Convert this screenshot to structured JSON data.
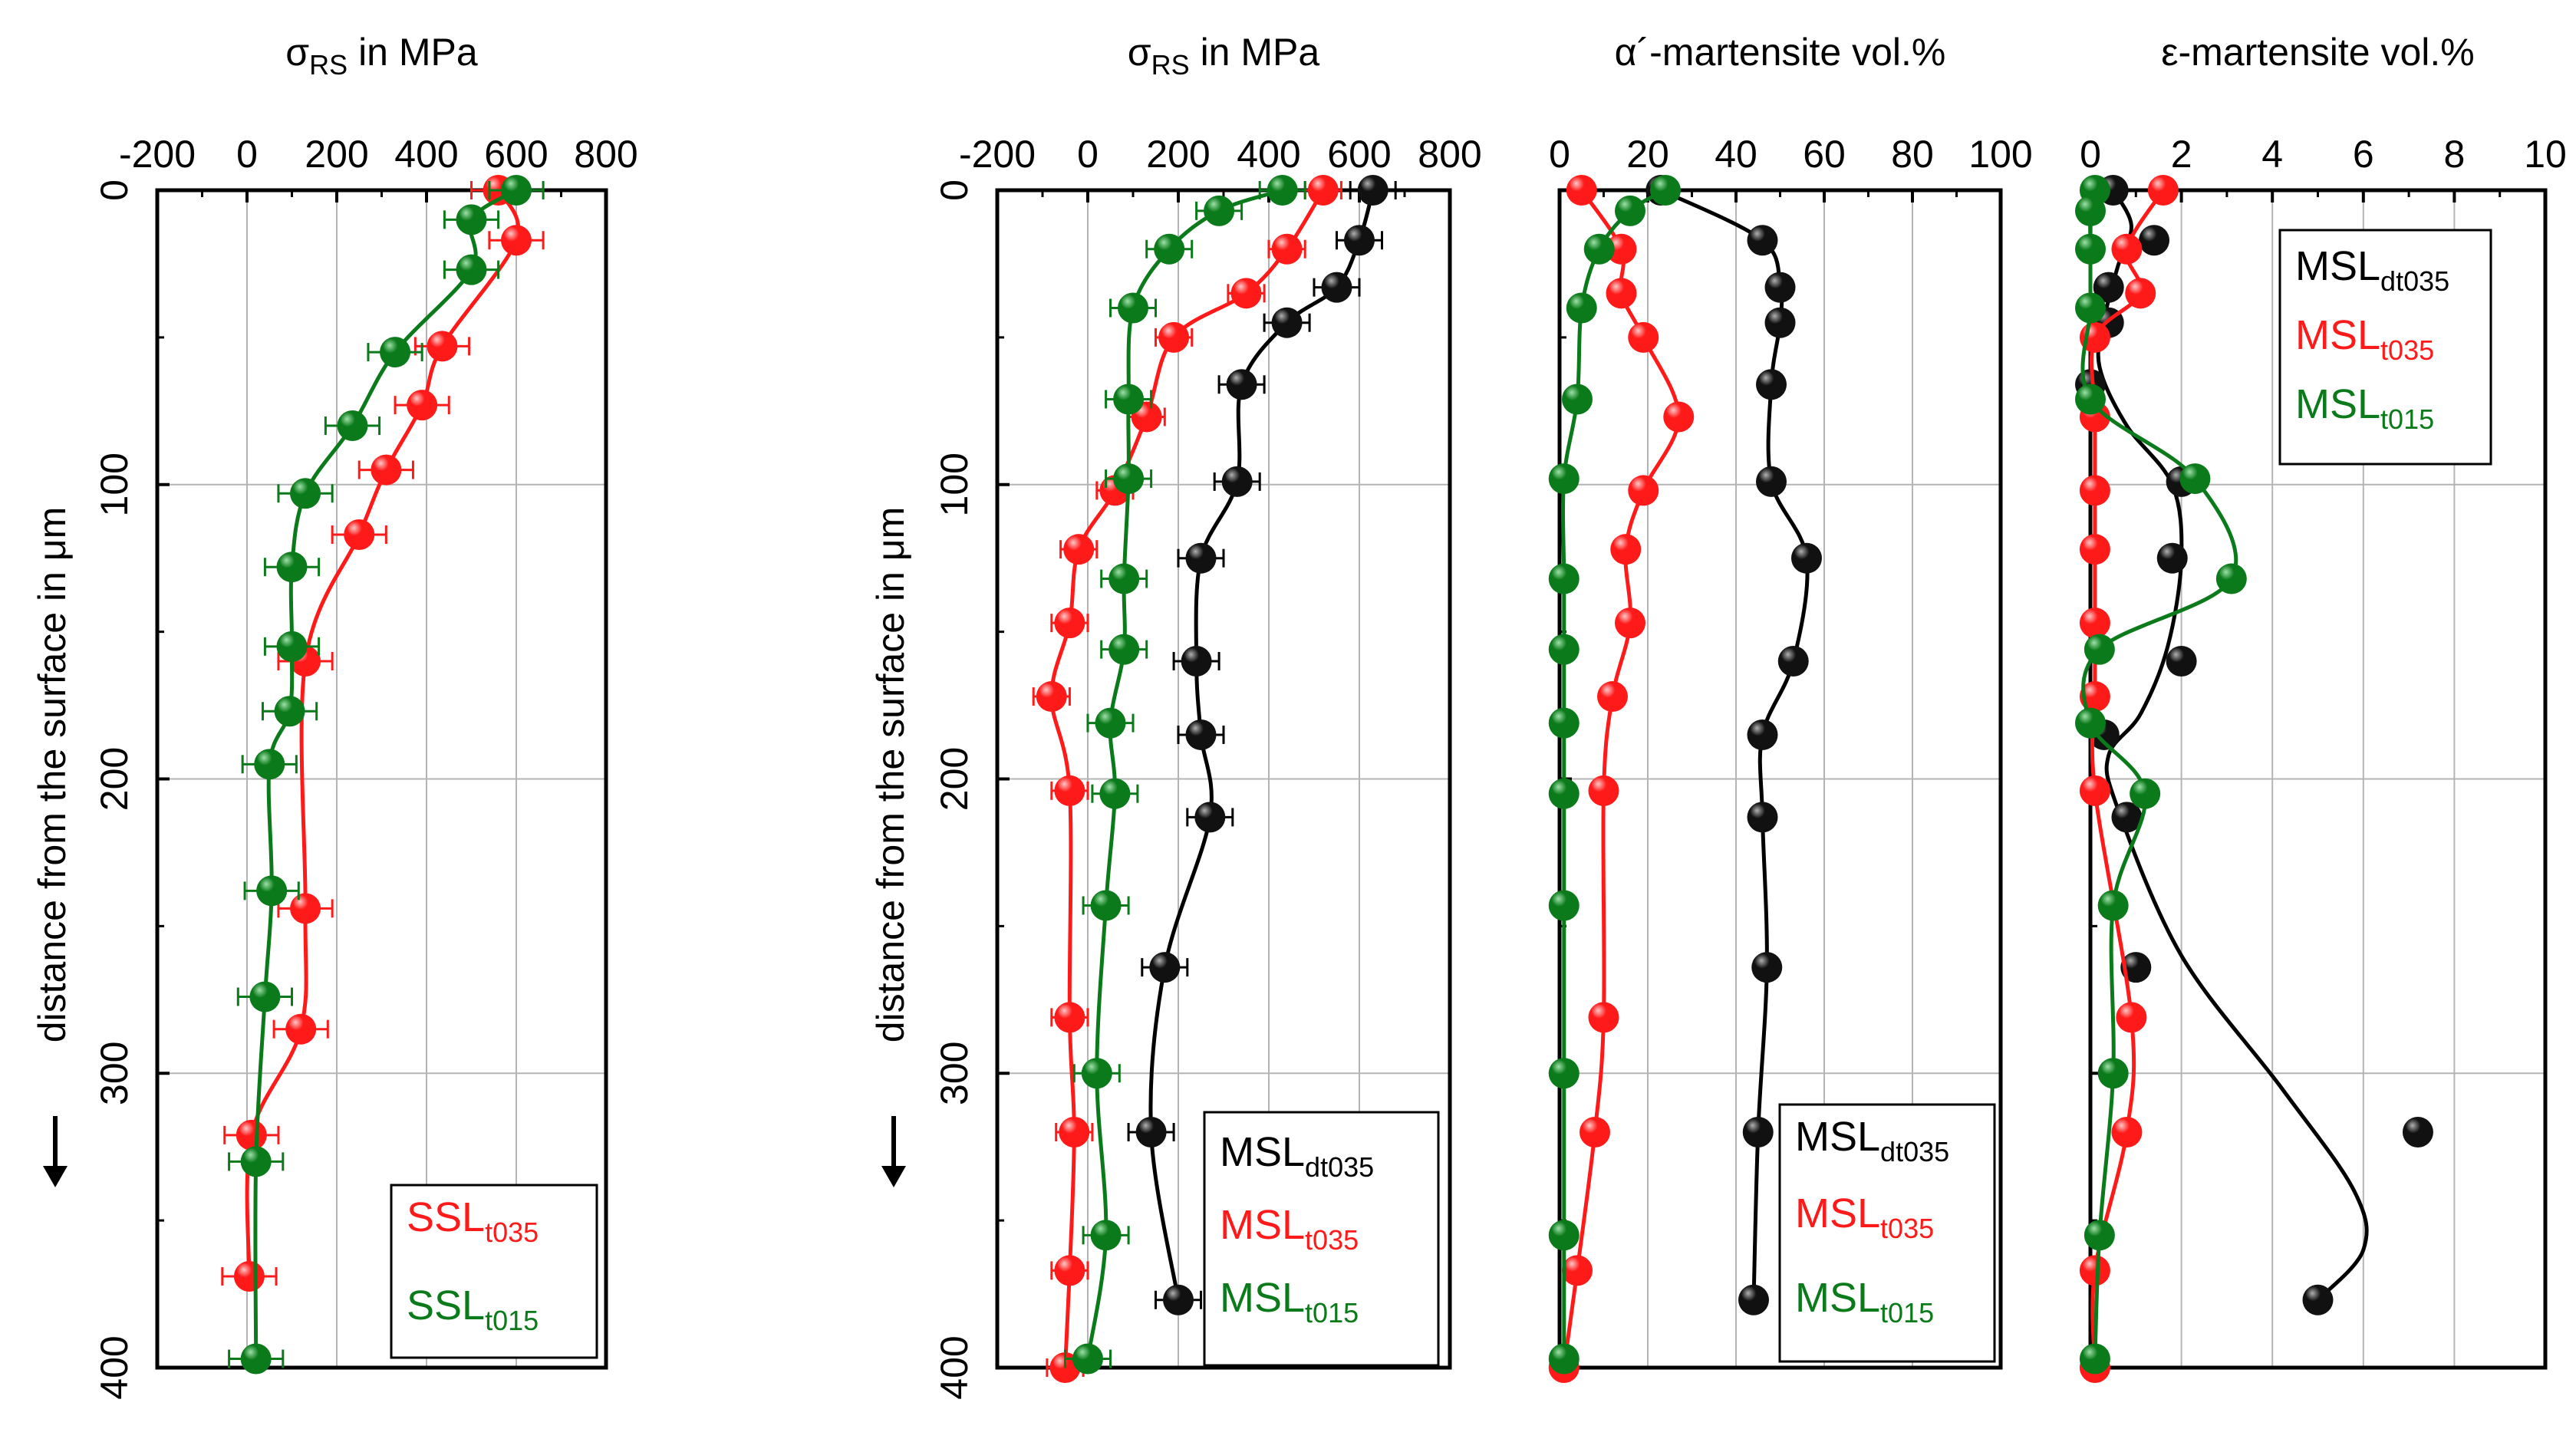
{
  "colors": {
    "red": "#ff1a1a",
    "green": "#0a7a1a",
    "black": "#000000",
    "grid": "#b4b4b4"
  },
  "y_axis": {
    "label": "distance from the surface in μm",
    "ticks": [
      0,
      100,
      200,
      300,
      400
    ],
    "range": [
      0,
      400
    ]
  },
  "chart_data": [
    {
      "type": "line",
      "title": {
        "main": "σ",
        "sub": "RS",
        "rest": " in MPa"
      },
      "xlim": [
        -200,
        800
      ],
      "xticks": [
        -200,
        0,
        200,
        400,
        600,
        800
      ],
      "ylabel": "distance from the surface in μm",
      "legend": [
        {
          "name": "SSL",
          "sub": "t035",
          "color": "#ff1a1a"
        },
        {
          "name": "SSL",
          "sub": "t015",
          "color": "#0a7a1a"
        }
      ],
      "series": [
        {
          "name": "SSL t035",
          "color": "#ff1a1a",
          "x": [
            560,
            600,
            435,
            390,
            310,
            250,
            130,
            130,
            120,
            10,
            5
          ],
          "y": [
            0,
            17,
            53,
            73,
            95,
            117,
            160,
            244,
            285,
            321,
            369
          ],
          "xerr": 60
        },
        {
          "name": "SSL t015",
          "color": "#0a7a1a",
          "x": [
            600,
            500,
            500,
            330,
            235,
            130,
            100,
            100,
            95,
            50,
            55,
            40,
            20,
            20
          ],
          "y": [
            0,
            10,
            27,
            55,
            80,
            103,
            128,
            155,
            177,
            195,
            238,
            274,
            330,
            397
          ],
          "xerr": 60
        }
      ]
    },
    {
      "type": "line",
      "title": {
        "main": "σ",
        "sub": "RS",
        "rest": " in MPa"
      },
      "xlim": [
        -200,
        800
      ],
      "xticks": [
        -200,
        0,
        200,
        400,
        600,
        800
      ],
      "legend": [
        {
          "name": "MSL",
          "sub": "dt035",
          "color": "#000000"
        },
        {
          "name": "MSL",
          "sub": "t035",
          "color": "#ff1a1a"
        },
        {
          "name": "MSL",
          "sub": "t015",
          "color": "#0a7a1a"
        }
      ],
      "series": [
        {
          "name": "MSL dt035",
          "color": "#000000",
          "x": [
            630,
            600,
            550,
            440,
            340,
            330,
            250,
            240,
            250,
            270,
            170,
            140,
            200
          ],
          "y": [
            0,
            17,
            33,
            45,
            66,
            99,
            125,
            160,
            185,
            213,
            264,
            320,
            377
          ],
          "xerr": 50
        },
        {
          "name": "MSL t035",
          "color": "#ff1a1a",
          "x": [
            520,
            440,
            350,
            190,
            130,
            60,
            -20,
            -40,
            -80,
            -40,
            -40,
            -30,
            -40,
            -50
          ],
          "y": [
            0,
            20,
            35,
            50,
            77,
            102,
            122,
            147,
            172,
            204,
            281,
            320,
            367,
            400
          ],
          "xerr": 40
        },
        {
          "name": "MSL t015",
          "color": "#0a7a1a",
          "x": [
            430,
            290,
            180,
            100,
            90,
            90,
            80,
            80,
            50,
            60,
            40,
            20,
            40,
            0
          ],
          "y": [
            0,
            7,
            20,
            40,
            71,
            98,
            132,
            156,
            181,
            205,
            243,
            300,
            355,
            397
          ],
          "xerr": 50
        }
      ]
    },
    {
      "type": "line",
      "title": {
        "main": "α´-martensite vol.%",
        "sub": "",
        "rest": ""
      },
      "xlim": [
        0,
        100
      ],
      "xticks": [
        0,
        20,
        40,
        60,
        80,
        100
      ],
      "legend": [
        {
          "name": "MSL",
          "sub": "dt035",
          "color": "#000000"
        },
        {
          "name": "MSL",
          "sub": "t035",
          "color": "#ff1a1a"
        },
        {
          "name": "MSL",
          "sub": "t015",
          "color": "#0a7a1a"
        }
      ],
      "series": [
        {
          "name": "MSL dt035",
          "color": "#000000",
          "x": [
            23,
            46,
            50,
            50,
            48,
            48,
            56,
            53,
            46,
            46,
            47,
            45,
            44
          ],
          "y": [
            0,
            17,
            33,
            45,
            66,
            99,
            125,
            160,
            185,
            213,
            264,
            320,
            377
          ]
        },
        {
          "name": "MSL t035",
          "color": "#ff1a1a",
          "x": [
            5,
            14,
            14,
            19,
            27,
            19,
            15,
            16,
            12,
            10,
            10,
            8,
            4,
            1
          ],
          "y": [
            0,
            20,
            35,
            50,
            77,
            102,
            122,
            147,
            172,
            204,
            281,
            320,
            367,
            400
          ]
        },
        {
          "name": "MSL t015",
          "color": "#0a7a1a",
          "x": [
            24,
            16,
            9,
            5,
            4,
            1,
            1,
            1,
            1,
            1,
            1,
            1,
            1,
            1
          ],
          "y": [
            0,
            7,
            20,
            40,
            71,
            98,
            132,
            156,
            181,
            205,
            243,
            300,
            355,
            397
          ]
        }
      ]
    },
    {
      "type": "line",
      "title": {
        "main": "ε-martensite vol.%",
        "sub": "",
        "rest": ""
      },
      "xlim": [
        0,
        10
      ],
      "xticks": [
        0,
        2,
        4,
        6,
        8,
        10
      ],
      "legend": [
        {
          "name": "MSL",
          "sub": "dt035",
          "color": "#000000"
        },
        {
          "name": "MSL",
          "sub": "t035",
          "color": "#ff1a1a"
        },
        {
          "name": "MSL",
          "sub": "t015",
          "color": "#0a7a1a"
        }
      ],
      "series": [
        {
          "name": "MSL dt035",
          "color": "#000000",
          "x": [
            0.5,
            1.4,
            0.4,
            0.4,
            0,
            2,
            1.8,
            2,
            0.3,
            0.8,
            1,
            7.2,
            5
          ],
          "y": [
            0,
            17,
            33,
            45,
            66,
            99,
            125,
            160,
            185,
            213,
            264,
            320,
            377
          ],
          "curve_x": [
            0.5,
            0.9,
            0.6,
            0.3,
            0.2,
            0.8,
            1.8,
            2.0,
            1.7,
            1.1,
            0.4,
            0.6,
            2.0,
            4.2,
            5.8,
            6.0,
            5.0
          ],
          "curve_y": [
            0,
            12,
            26,
            44,
            60,
            80,
            100,
            125,
            155,
            178,
            192,
            210,
            260,
            305,
            340,
            360,
            377
          ]
        },
        {
          "name": "MSL t035",
          "color": "#ff1a1a",
          "x": [
            1.6,
            0.8,
            1.1,
            0.1,
            0.1,
            0.1,
            0.1,
            0.1,
            0.1,
            0.1,
            0.9,
            0.8,
            0.1,
            0.1
          ],
          "y": [
            0,
            20,
            35,
            50,
            77,
            102,
            122,
            147,
            172,
            204,
            281,
            320,
            367,
            400
          ]
        },
        {
          "name": "MSL t015",
          "color": "#0a7a1a",
          "x": [
            0.1,
            0,
            0,
            0,
            0,
            2.3,
            3.1,
            0.2,
            0,
            1.2,
            0.5,
            0.5,
            0.2,
            0.1
          ],
          "y": [
            0,
            7,
            20,
            40,
            71,
            98,
            132,
            156,
            181,
            205,
            243,
            300,
            355,
            397
          ]
        }
      ]
    }
  ]
}
